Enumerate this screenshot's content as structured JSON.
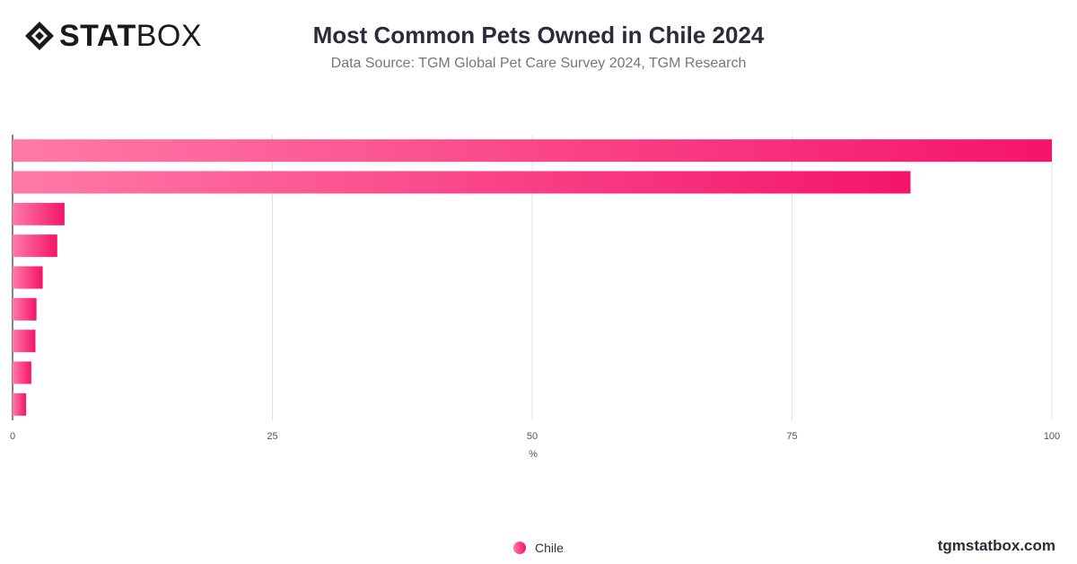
{
  "header": {
    "logo_bold": "STAT",
    "logo_light": "BOX",
    "title": "Most Common Pets Owned in Chile 2024",
    "subtitle": "Data Source: TGM Global Pet Care Survey 2024, TGM Research"
  },
  "legend": {
    "label": "Chile"
  },
  "footer": {
    "site": "tgmstatbox.com"
  },
  "colors": {
    "bar_start": "#ff7aa8",
    "bar_end": "#f5146a",
    "grid": "#e3e3e3",
    "axis": "#333333"
  },
  "chart_data": {
    "type": "bar",
    "orientation": "horizontal",
    "categories": [
      "",
      "",
      "",
      "",
      "",
      "",
      "",
      "",
      ""
    ],
    "series": [
      {
        "name": "Chile",
        "values": [
          100,
          86.4,
          5.0,
          4.3,
          2.9,
          2.3,
          2.2,
          1.8,
          1.3
        ]
      }
    ],
    "xlabel": "%",
    "xlim": [
      0,
      100
    ],
    "xticks": [
      "0",
      "25",
      "50",
      "75",
      "100"
    ],
    "grid": true,
    "legend_position": "bottom-center"
  }
}
